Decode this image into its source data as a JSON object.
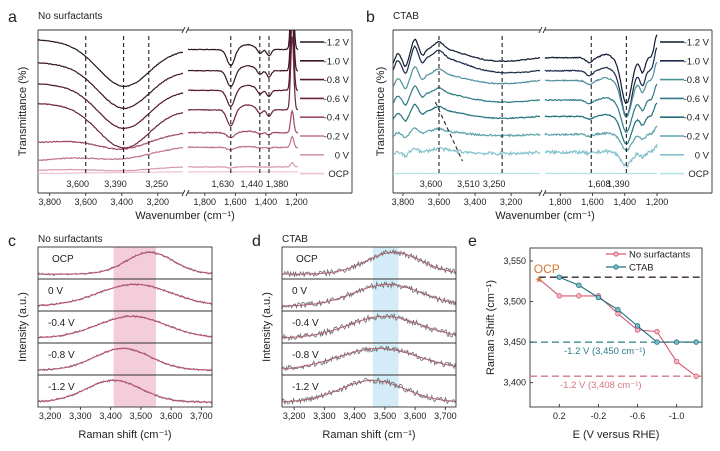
{
  "panel_labels": [
    "a",
    "b",
    "c",
    "d",
    "e"
  ],
  "chart_data": [
    {
      "panel": "a",
      "type": "line",
      "title": "No surfactants",
      "xlabel": "Wavenumber (cm⁻¹)",
      "ylabel": "Transmittance (%)",
      "ylim": [
        0,
        100
      ],
      "segments": [
        {
          "xlim": [
            3865,
            3060
          ],
          "ticks": [
            3800,
            3600,
            3400,
            3200
          ],
          "tick_labels": [
            "3,800",
            "3,600",
            "3,400",
            "3,200"
          ],
          "bands": [
            [
              3390,
              200,
              -25
            ]
          ]
        },
        {
          "xlim": [
            1910,
            1190
          ],
          "ticks": [
            1800,
            1600,
            1400,
            1200
          ],
          "tick_labels": [
            "1,800",
            "1,600",
            "1,400",
            "1,200"
          ],
          "bands": [
            [
              1630,
              35,
              -10
            ],
            [
              1520,
              70,
              3
            ],
            [
              1440,
              22,
              -3
            ],
            [
              1380,
              20,
              -4
            ],
            [
              1228,
              14,
              45
            ]
          ]
        }
      ],
      "markers": [
        {
          "x": 3600,
          "label": "3,600"
        },
        {
          "x": 3390,
          "label": "3,390"
        },
        {
          "x": 3250,
          "label": "3,250"
        },
        {
          "x": 1630,
          "label": "1,630"
        },
        {
          "x": 1440,
          "label": "1,440"
        },
        {
          "x": 1380,
          "label": "1,380"
        }
      ],
      "series": [
        {
          "name": "-1.2 V",
          "color": "#2a1420",
          "offset": 94,
          "offset_right": 88,
          "scale": 1.0,
          "noise": 0.2
        },
        {
          "name": "-1.0 V",
          "color": "#3b1526",
          "offset": 80,
          "offset_right": 75,
          "scale": 1.0,
          "noise": 0.2
        },
        {
          "name": "-0.8 V",
          "color": "#55182e",
          "offset": 67,
          "offset_right": 63,
          "scale": 1.0,
          "noise": 0.2
        },
        {
          "name": "-0.6 V",
          "color": "#6e2340",
          "offset": 55,
          "offset_right": 51,
          "scale": 1.0,
          "noise": 0.2
        },
        {
          "name": "-0.4 V",
          "color": "#a04a64",
          "offset": 31,
          "offset_right": 37,
          "scale": 0.3,
          "noise": 0.3
        },
        {
          "name": "-0.2 V",
          "color": "#bf7488",
          "offset": 20,
          "offset_right": 28,
          "scale": 0.15,
          "noise": 0.3
        },
        {
          "name": "0 V",
          "color": "#d89aab",
          "offset": 14,
          "offset_right": 16,
          "scale": 0.06,
          "noise": 0.2
        },
        {
          "name": "OCP",
          "color": "#efc3cd",
          "offset": 12,
          "offset_right": 13,
          "scale": 0.0,
          "noise": 0.1
        }
      ]
    },
    {
      "panel": "b",
      "type": "line",
      "title": "CTAB",
      "xlabel": "Wavenumber (cm⁻¹)",
      "ylabel": "Transmittance (%)",
      "ylim": [
        0,
        100
      ],
      "segments": [
        {
          "xlim": [
            3855,
            3040
          ],
          "ticks": [
            3800,
            3600,
            3400,
            3200
          ],
          "tick_labels": [
            "3,800",
            "3,600",
            "3,400",
            "3,200"
          ],
          "bands": [
            [
              3650,
              260,
              16
            ],
            [
              3830,
              22,
              6
            ],
            [
              3735,
              22,
              9
            ],
            [
              3600,
              35,
              4
            ],
            [
              3785,
              16,
              -5
            ],
            [
              3690,
              16,
              -3
            ]
          ]
        },
        {
          "xlim": [
            1895,
            1200
          ],
          "ticks": [
            1800,
            1600,
            1400,
            1200
          ],
          "tick_labels": [
            "1,800",
            "1,600",
            "1,400",
            "1,200"
          ],
          "bands": [
            [
              1390,
              45,
              -28
            ],
            [
              1290,
              22,
              -9
            ],
            [
              1200,
              22,
              14
            ],
            [
              1520,
              40,
              2
            ],
            [
              1620,
              30,
              -3
            ]
          ]
        }
      ],
      "markers": [
        {
          "x": 3600,
          "label": "3,600"
        },
        {
          "x": 3250,
          "label": "3,250"
        },
        {
          "x": 1608,
          "label": "1,608"
        },
        {
          "x": 1390,
          "label": "1,390"
        }
      ],
      "slanted_marker": {
        "from": 3620,
        "to": 3470,
        "label": "3,510"
      },
      "series": [
        {
          "name": "-1.2 V",
          "color": "#0f1a33",
          "offset": 69,
          "offset_right": 83,
          "scale": 1.0,
          "noise": 0.3
        },
        {
          "name": "-1.0 V",
          "color": "#1b2a48",
          "offset": 65,
          "offset_right": 75,
          "scale": 1.0,
          "noise": 0.3
        },
        {
          "name": "-0.8 V",
          "color": "#4f8f9c",
          "offset": 57,
          "offset_right": 69,
          "scale": 0.8,
          "noise": 0.3
        },
        {
          "name": "-0.6 V",
          "color": "#2b7a85",
          "offset": 48,
          "offset_right": 57,
          "scale": 0.7,
          "noise": 0.3
        },
        {
          "name": "-0.4 V",
          "color": "#20707a",
          "offset": 39,
          "offset_right": 47,
          "scale": 0.6,
          "noise": 0.3
        },
        {
          "name": "-0.2 V",
          "color": "#5fa3ab",
          "offset": 31,
          "offset_right": 36,
          "scale": 0.35,
          "noise": 0.6
        },
        {
          "name": "0 V",
          "color": "#84c3cb",
          "offset": 20,
          "offset_right": 25,
          "scale": 0.3,
          "noise": 1.0
        },
        {
          "name": "OCP",
          "color": "#b4e2e8",
          "offset": 12,
          "offset_right": 12,
          "scale": 0.0,
          "noise": 0.1
        }
      ]
    },
    {
      "panel": "c",
      "type": "line",
      "title": "No surfactants",
      "xlabel": "Raman shift (cm⁻¹)",
      "ylabel": "Intensity (a.u.)",
      "xlim": [
        3160,
        3735
      ],
      "ticks": [
        3200,
        3300,
        3400,
        3500,
        3600,
        3700
      ],
      "tick_labels": [
        "3,200",
        "3,300",
        "3,400",
        "3,500",
        "3,600",
        "3,700"
      ],
      "highlight": {
        "range": [
          3410,
          3550
        ],
        "color": "#f1c4d3"
      },
      "fit_color": "#c0506a",
      "data_color": "#7a6f72",
      "noise": 0.05,
      "rows": [
        {
          "label": "OCP",
          "peak": 3530,
          "width": 110
        },
        {
          "label": "0 V",
          "peak": 3480,
          "width": 170
        },
        {
          "label": "-0.4 V",
          "peak": 3470,
          "width": 160
        },
        {
          "label": "-0.8 V",
          "peak": 3440,
          "width": 130
        },
        {
          "label": "-1.2 V",
          "peak": 3410,
          "width": 130
        }
      ]
    },
    {
      "panel": "d",
      "type": "line",
      "title": "CTAB",
      "xlabel": "Raman shift (cm⁻¹)",
      "ylabel": "Intensity (a.u.)",
      "xlim": [
        3160,
        3735
      ],
      "ticks": [
        3200,
        3300,
        3400,
        3500,
        3600,
        3700
      ],
      "tick_labels": [
        "3,200",
        "3,300",
        "3,400",
        "3,500",
        "3,600",
        "3,700"
      ],
      "highlight": {
        "range": [
          3460,
          3545
        ],
        "color": "#cde9f6"
      },
      "fit_color": "#b0606e",
      "data_color": "#6e6e6e",
      "noise": 0.14,
      "rows": [
        {
          "label": "OCP",
          "peak": 3530,
          "width": 130
        },
        {
          "label": "0 V",
          "peak": 3510,
          "width": 160
        },
        {
          "label": "-0.4 V",
          "peak": 3500,
          "width": 170
        },
        {
          "label": "-0.8 V",
          "peak": 3480,
          "width": 190
        },
        {
          "label": "-1.2 V",
          "peak": 3460,
          "width": 150
        }
      ]
    },
    {
      "panel": "e",
      "type": "line",
      "xlabel": "E (V versus RHE)",
      "ylabel": "Raman Shift (cm⁻¹)",
      "xlim": [
        0.5,
        -1.26
      ],
      "ylim": [
        3370,
        3566
      ],
      "xticks": [
        0.2,
        -0.2,
        -0.6,
        -1.0
      ],
      "xtick_labels": [
        "0.2",
        "-0.2",
        "-0.6",
        "-1.0"
      ],
      "yticks": [
        3400,
        3450,
        3500,
        3550
      ],
      "ytick_labels": [
        "3,400",
        "3,450",
        "3,500",
        "3,550"
      ],
      "legend_position": "top-right",
      "ocp": {
        "label": "OCP",
        "x": 0.41,
        "y": 3528,
        "color": "#d8732e"
      },
      "series": [
        {
          "name": "No surfactants",
          "color": "#d9576f",
          "fill": "#f3b9c4",
          "x": [
            0.41,
            0.2,
            0.0,
            -0.2,
            -0.4,
            -0.6,
            -0.8,
            -1.0,
            -1.2
          ],
          "y": [
            3528,
            3507,
            3507,
            3507,
            3485,
            3465,
            3463,
            3426,
            3408
          ]
        },
        {
          "name": "CTAB",
          "color": "#1e6f7e",
          "fill": "#7fbcc6",
          "x": [
            0.2,
            0.0,
            -0.2,
            -0.4,
            -0.6,
            -0.8,
            -1.0,
            -1.2
          ],
          "y": [
            3530,
            3520,
            3505,
            3490,
            3470,
            3450,
            3450,
            3450
          ]
        }
      ],
      "reference_lines": [
        {
          "y": 3530,
          "color": "#3a2a2a",
          "label": ""
        },
        {
          "y": 3450,
          "color": "#2b7d8c",
          "label": "-1.2 V (3,450 cm⁻¹)"
        },
        {
          "y": 3408,
          "color": "#d67585",
          "label": "-1.2 V (3,408 cm⁻¹)"
        }
      ]
    }
  ]
}
